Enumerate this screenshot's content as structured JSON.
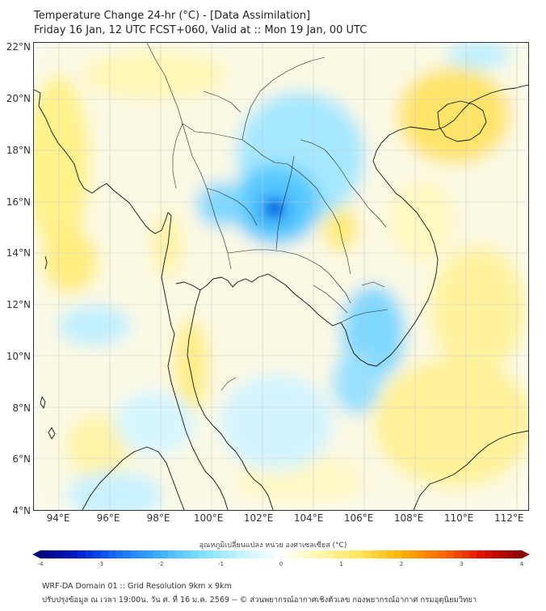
{
  "title": {
    "line1": "Temperature Change 24-hr (°C) - [Data Assimilation]",
    "line2": "Friday 16 Jan, 12 UTC FCST+060, Valid at :: Mon 19 Jan, 00 UTC"
  },
  "axes": {
    "lat_labels": [
      "22°N",
      "20°N",
      "18°N",
      "16°N",
      "14°N",
      "12°N",
      "10°N",
      "8°N",
      "6°N",
      "4°N"
    ],
    "lat_values": [
      22,
      20,
      18,
      16,
      14,
      12,
      10,
      8,
      6,
      4
    ],
    "lon_labels": [
      "94°E",
      "96°E",
      "98°E",
      "100°E",
      "102°E",
      "104°E",
      "106°E",
      "108°E",
      "110°E",
      "112°E"
    ],
    "lon_values": [
      94,
      96,
      98,
      100,
      102,
      104,
      106,
      108,
      110,
      112
    ],
    "lon_range": [
      93,
      112.8
    ],
    "lat_range": [
      4,
      22.2
    ]
  },
  "colorbar": {
    "title": "อุณหภูมิเปลี่ยนแปลง หน่วย องศาเซลเซียส (°C)",
    "ticks": [
      "-4",
      "-3",
      "-2",
      "-1",
      "0",
      "1",
      "2",
      "3",
      "4"
    ],
    "range": [
      -4,
      4
    ],
    "colors": [
      "#00007a",
      "#0020d0",
      "#1a73ff",
      "#3fb2ff",
      "#7fe0ff",
      "#c5f4ff",
      "#ffffff",
      "#fff6a8",
      "#ffe35a",
      "#ffb400",
      "#ff6a00",
      "#e01000",
      "#8a0000"
    ]
  },
  "footer": {
    "line1": "WRF-DA Domain 01 :: Grid Resolution 9km x 9km",
    "line2": "ปรับปรุงข้อมูล ณ เวลา 19:00น. วัน ศ. ที่ 16 ม.ค. 2569 -- © ส่วนพยากรณ์อากาศเชิงตัวเลข กองพยากรณ์อากาศ กรมอุตุนิยมวิทยา"
  }
}
